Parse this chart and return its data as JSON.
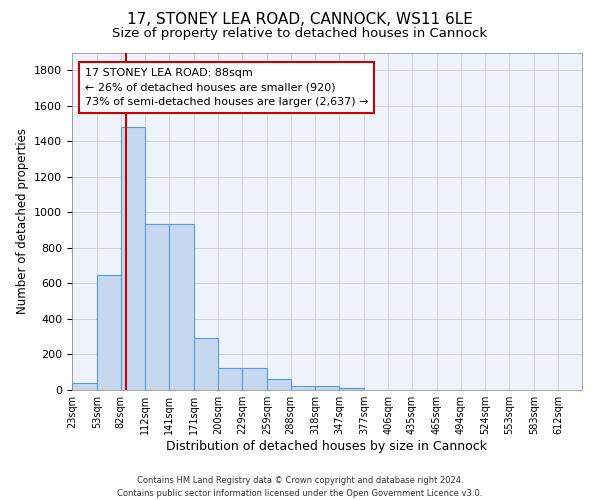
{
  "title": "17, STONEY LEA ROAD, CANNOCK, WS11 6LE",
  "subtitle": "Size of property relative to detached houses in Cannock",
  "xlabel": "Distribution of detached houses by size in Cannock",
  "ylabel": "Number of detached properties",
  "bin_edges": [
    23,
    53,
    82,
    112,
    141,
    171,
    200,
    229,
    259,
    288,
    318,
    347,
    377,
    406,
    435,
    465,
    494,
    524,
    553,
    583,
    612
  ],
  "bar_heights": [
    38,
    650,
    1480,
    935,
    935,
    290,
    125,
    125,
    60,
    25,
    22,
    10,
    0,
    0,
    0,
    0,
    0,
    0,
    0,
    0
  ],
  "bar_color": "#c5d8f0",
  "bar_edgecolor": "#5b9bd5",
  "bar_linewidth": 0.8,
  "vline_x": 88,
  "vline_color": "#cc0000",
  "vline_linewidth": 1.5,
  "ylim": [
    0,
    1900
  ],
  "yticks": [
    0,
    200,
    400,
    600,
    800,
    1000,
    1200,
    1400,
    1600,
    1800
  ],
  "annotation_text": "17 STONEY LEA ROAD: 88sqm\n← 26% of detached houses are smaller (920)\n73% of semi-detached houses are larger (2,637) →",
  "annotation_boxcolor": "white",
  "annotation_edgecolor": "#cc0000",
  "annotation_fontsize": 8,
  "grid_color": "#cccccc",
  "background_color": "#eef2fa",
  "footer_line1": "Contains HM Land Registry data © Crown copyright and database right 2024.",
  "footer_line2": "Contains public sector information licensed under the Open Government Licence v3.0.",
  "title_fontsize": 11,
  "subtitle_fontsize": 9.5,
  "xlabel_fontsize": 9,
  "ylabel_fontsize": 8.5,
  "xtick_fontsize": 7,
  "ytick_fontsize": 8,
  "tick_labels": [
    "23sqm",
    "53sqm",
    "82sqm",
    "112sqm",
    "141sqm",
    "171sqm",
    "200sqm",
    "229sqm",
    "259sqm",
    "288sqm",
    "318sqm",
    "347sqm",
    "377sqm",
    "406sqm",
    "435sqm",
    "465sqm",
    "494sqm",
    "524sqm",
    "553sqm",
    "583sqm",
    "612sqm"
  ]
}
